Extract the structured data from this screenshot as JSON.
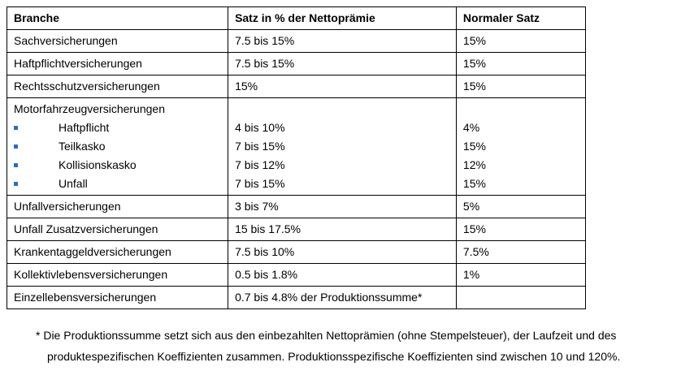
{
  "table": {
    "headers": [
      "Branche",
      "Satz in % der Nettoprämie",
      "Normaler Satz"
    ],
    "rows": [
      {
        "branche": "Sachversicherungen",
        "satz": "7.5 bis 15%",
        "normal": "15%"
      },
      {
        "branche": "Haftpflichtversicherungen",
        "satz": "7.5 bis 15%",
        "normal": "15%"
      },
      {
        "branche": "Rechtsschutzversicherungen",
        "satz": "15%",
        "normal": "15%"
      }
    ],
    "group": {
      "branche": "Motorfahrzeugversicherungen",
      "items": [
        {
          "label": "Haftpflicht",
          "satz": "4 bis 10%",
          "normal": "4%"
        },
        {
          "label": "Teilkasko",
          "satz": "7 bis 15%",
          "normal": "15%"
        },
        {
          "label": "Kollisionskasko",
          "satz": "7 bis 12%",
          "normal": "12%"
        },
        {
          "label": "Unfall",
          "satz": "7 bis 15%",
          "normal": "15%"
        }
      ]
    },
    "rows_after": [
      {
        "branche": "Unfallversicherungen",
        "satz": "3 bis 7%",
        "normal": "5%"
      },
      {
        "branche": "Unfall Zusatzversicherungen",
        "satz": "15 bis 17.5%",
        "normal": "15%"
      },
      {
        "branche": "Krankentaggeldversicherungen",
        "satz": "7.5 bis 10%",
        "normal": "7.5%"
      },
      {
        "branche": "Kollektivlebensversicherungen",
        "satz": "0.5 bis 1.8%",
        "normal": "1%"
      },
      {
        "branche": "Einzellebensversicherungen",
        "satz": "0.7 bis 4.8% der Produktionssumme*",
        "normal": ""
      }
    ]
  },
  "footnote": {
    "line1": "* Die Produktionssumme setzt sich aus den einbezahlten Nettoprämien (ohne Stempelsteuer), der Laufzeit und des",
    "line2": "produktespezifischen Koeffizienten zusammen. Produktionsspezifische Koeffizienten sind zwischen 10 und 120%."
  },
  "colors": {
    "bullet": "#2e6bc1",
    "border": "#000000"
  },
  "icons": {
    "bullet": "square-bullet-icon"
  }
}
